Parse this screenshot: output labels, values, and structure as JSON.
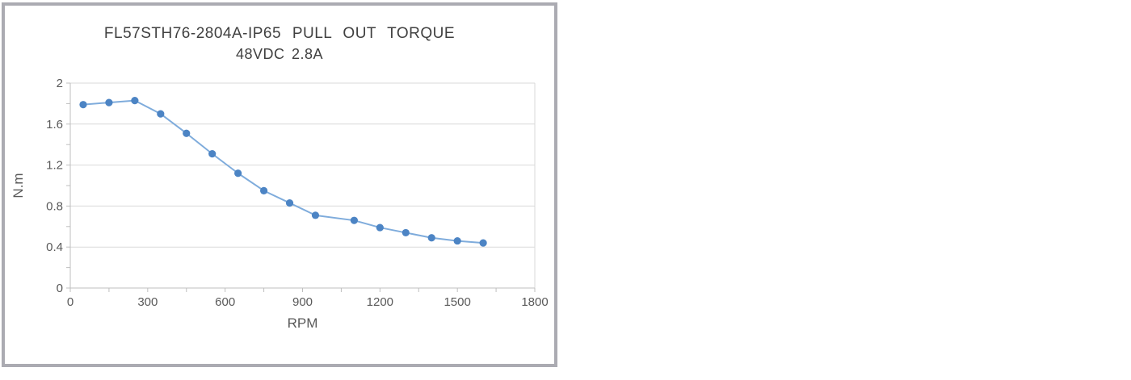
{
  "chart_data": {
    "type": "line",
    "title": "FL57STH76-2804A-IP65 PULL OUT TORQUE",
    "subtitle": "48VDC 2.8A",
    "xlabel": "RPM",
    "ylabel": "N.m",
    "series_name": "Pull out torque",
    "x": [
      50,
      150,
      250,
      350,
      450,
      550,
      650,
      750,
      850,
      950,
      1100,
      1200,
      1300,
      1400,
      1500,
      1600
    ],
    "values": [
      1.79,
      1.81,
      1.83,
      1.7,
      1.51,
      1.31,
      1.12,
      0.95,
      0.83,
      0.71,
      0.66,
      0.59,
      0.54,
      0.49,
      0.46,
      0.44
    ],
    "xlim": [
      0,
      1800
    ],
    "ylim": [
      0,
      2
    ],
    "x_tick_values": [
      0,
      300,
      600,
      900,
      1200,
      1500,
      1800
    ],
    "x_tick_labels": [
      "0",
      "300",
      "600",
      "900",
      "1200",
      "1500",
      "1800"
    ],
    "x_minor_step": 150,
    "y_tick_values": [
      0,
      0.4,
      0.8,
      1.2,
      1.6,
      2
    ],
    "y_tick_labels": [
      "0",
      "0.4",
      "0.8",
      "1.2",
      "1.6",
      "2"
    ],
    "y_minor_step": 0.2,
    "grid": "horizontal-only",
    "legend": "none",
    "marker": "circle",
    "colors": {
      "line": "#7FACDC",
      "marker": "#4C84C4",
      "gridline": "#D9D9D9",
      "plot_border": "#D9D9D9",
      "axis": "#BFBFBF",
      "tick_text": "#595959",
      "title_text": "#404040",
      "frame_border": "#ABABB2"
    }
  }
}
